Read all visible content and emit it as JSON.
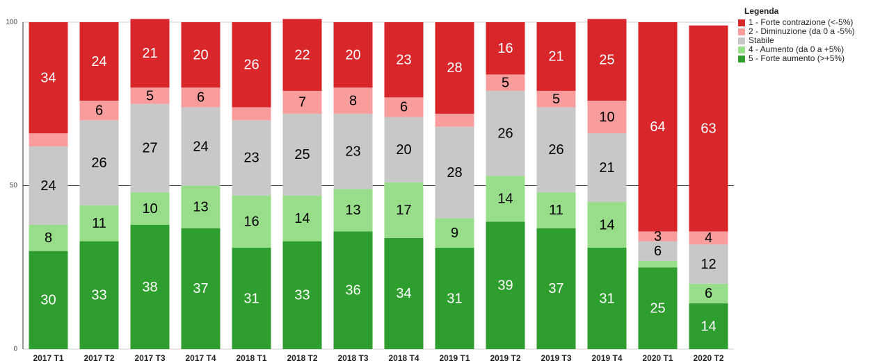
{
  "chart_data": {
    "type": "stacked_bar",
    "legend_title": "Legenda",
    "categories": [
      "2017 T1",
      "2017 T2",
      "2017 T3",
      "2017 T4",
      "2018 T1",
      "2018 T2",
      "2018 T3",
      "2018 T4",
      "2019 T1",
      "2019 T2",
      "2019 T3",
      "2019 T4",
      "2020 T1",
      "2020 T2"
    ],
    "series": [
      {
        "name": "1 - Forte contrazione (<-5%)",
        "color": "#d9262b",
        "label_color": "#ffffff",
        "values": [
          34,
          24,
          21,
          20,
          26,
          22,
          20,
          23,
          28,
          16,
          21,
          25,
          64,
          63
        ]
      },
      {
        "name": "2 - Diminuzione (da 0 a -5%)",
        "color": "#f89c9c",
        "label_color": "#000000",
        "values": [
          4,
          6,
          5,
          6,
          4,
          7,
          8,
          6,
          4,
          5,
          5,
          10,
          3,
          4
        ],
        "value_labels": [
          null,
          "6",
          "5",
          "6",
          null,
          "7",
          "8",
          "6",
          null,
          "5",
          "5",
          "10",
          "3",
          "4"
        ]
      },
      {
        "name": "Stabile",
        "color": "#c8c8c8",
        "label_color": "#000000",
        "values": [
          24,
          26,
          27,
          24,
          23,
          25,
          23,
          20,
          28,
          26,
          26,
          21,
          6,
          12
        ]
      },
      {
        "name": "4 - Aumento (da 0 a +5%)",
        "color": "#98dd8a",
        "label_color": "#000000",
        "values": [
          8,
          11,
          10,
          13,
          16,
          14,
          13,
          17,
          9,
          14,
          11,
          14,
          2,
          6
        ],
        "value_labels": [
          "8",
          "11",
          "10",
          "13",
          "16",
          "14",
          "13",
          "17",
          "9",
          "14",
          "11",
          "14",
          null,
          "6"
        ]
      },
      {
        "name": "5 - Forte aumento (>+5%)",
        "color": "#2e9e2e",
        "label_color": "#ffffff",
        "values": [
          30,
          33,
          38,
          37,
          31,
          33,
          36,
          34,
          31,
          39,
          37,
          31,
          25,
          14
        ]
      }
    ],
    "ylim": [
      0,
      100
    ],
    "yticks": [
      0,
      50,
      100
    ],
    "grid": true,
    "legend": "right"
  }
}
